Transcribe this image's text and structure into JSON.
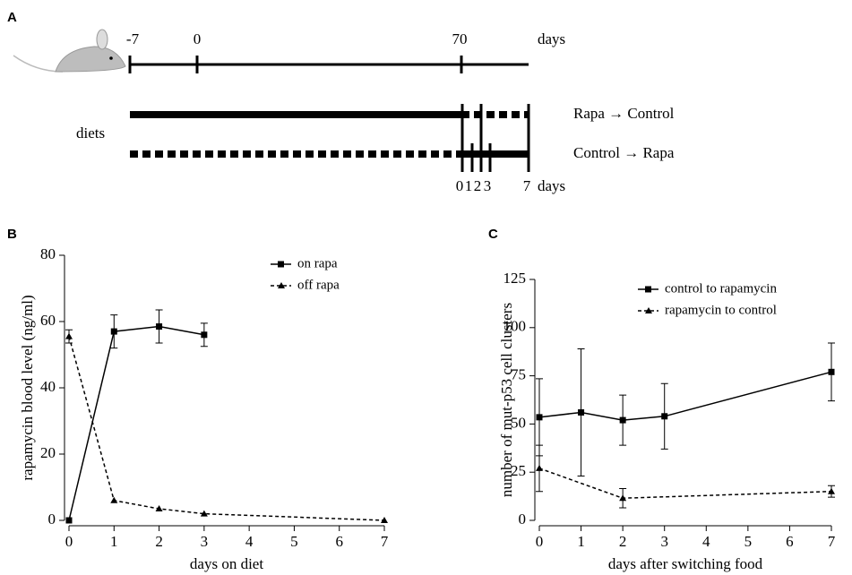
{
  "timeline": {
    "panel_label": "A",
    "ticks": [
      "-7",
      "0",
      "70"
    ],
    "unit": "days",
    "row_label": "diets",
    "diets": [
      "Rapa → Control",
      "Control → Rapa"
    ],
    "switch_ticks": [
      "0",
      "1",
      "2",
      "3",
      "7"
    ],
    "switch_unit": "days"
  },
  "chart_data": [
    {
      "type": "line",
      "panel_label": "B",
      "x_label": "days on diet",
      "y_label": "rapamycin blood level (ng/ml)",
      "xlim": [
        0,
        7
      ],
      "xticks": [
        0,
        1,
        2,
        3,
        4,
        5,
        6,
        7
      ],
      "ylim": [
        0,
        80
      ],
      "yticks": [
        0,
        20,
        40,
        60,
        80
      ],
      "legend": "upper right",
      "series": [
        {
          "name": "on rapa",
          "color": "#000000",
          "line_style": "solid",
          "marker": "square",
          "x": [
            0,
            1,
            2,
            3
          ],
          "values": [
            0,
            57,
            58.5,
            56
          ],
          "errors": [
            null,
            5,
            5,
            3.5
          ]
        },
        {
          "name": "off rapa",
          "color": "#000000",
          "line_style": "dashed",
          "marker": "triangle",
          "x": [
            0,
            1,
            2,
            3,
            7
          ],
          "values": [
            55.5,
            6,
            3.5,
            2,
            0
          ],
          "errors": [
            2,
            null,
            null,
            null,
            null
          ]
        }
      ]
    },
    {
      "type": "line",
      "panel_label": "C",
      "x_label": "days after switching food",
      "y_label": "number of mut-p53 cell clusters",
      "xlim": [
        0,
        7
      ],
      "xticks": [
        0,
        1,
        2,
        3,
        4,
        5,
        6,
        7
      ],
      "ylim": [
        0,
        125
      ],
      "yticks": [
        0,
        25,
        50,
        75,
        100,
        125
      ],
      "legend": "upper right",
      "series": [
        {
          "name": "control to rapamycin",
          "color": "#000000",
          "line_style": "solid",
          "marker": "square",
          "x": [
            0,
            1,
            2,
            3,
            7
          ],
          "values": [
            53.5,
            56,
            52,
            54,
            77
          ],
          "errors": [
            20,
            33,
            13,
            17,
            15
          ]
        },
        {
          "name": "rapamycin to control",
          "color": "#000000",
          "line_style": "dashed",
          "marker": "triangle",
          "x": [
            0,
            2,
            7
          ],
          "values": [
            27,
            11.5,
            15
          ],
          "errors": [
            12,
            5,
            3
          ]
        }
      ]
    }
  ]
}
